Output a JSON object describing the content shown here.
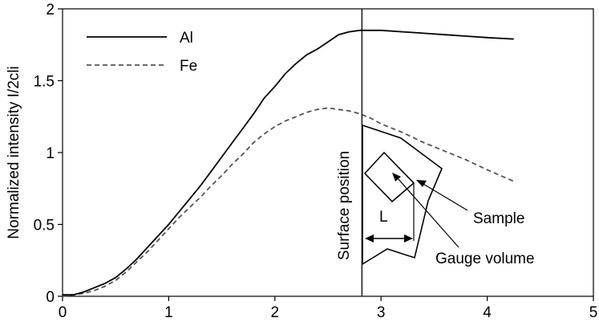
{
  "chart_data": {
    "type": "line",
    "ylabel": "Normalized intensity I/2cli",
    "xlim": [
      0,
      5
    ],
    "ylim": [
      0,
      2
    ],
    "xticks": [
      0,
      1,
      2,
      3,
      4,
      5
    ],
    "yticks": [
      0,
      0.5,
      1,
      1.5,
      2
    ],
    "ytick_labels": [
      "0",
      "0.5",
      "1",
      "1.5",
      "2"
    ],
    "legend_position": "top-left",
    "series": [
      {
        "name": "Al",
        "style": "solid",
        "color": "#000000",
        "x": [
          0.0,
          0.1,
          0.2,
          0.3,
          0.4,
          0.5,
          0.6,
          0.7,
          0.8,
          0.9,
          1.0,
          1.1,
          1.2,
          1.3,
          1.4,
          1.5,
          1.6,
          1.7,
          1.8,
          1.9,
          2.0,
          2.1,
          2.2,
          2.3,
          2.4,
          2.5,
          2.6,
          2.7,
          2.8,
          2.9,
          3.0,
          3.2,
          3.4,
          3.6,
          3.8,
          4.0,
          4.25
        ],
        "y": [
          0.01,
          0.01,
          0.03,
          0.06,
          0.09,
          0.13,
          0.19,
          0.26,
          0.34,
          0.42,
          0.5,
          0.59,
          0.68,
          0.77,
          0.87,
          0.97,
          1.07,
          1.17,
          1.27,
          1.38,
          1.46,
          1.55,
          1.62,
          1.68,
          1.72,
          1.77,
          1.82,
          1.84,
          1.85,
          1.85,
          1.85,
          1.84,
          1.83,
          1.82,
          1.81,
          1.8,
          1.79
        ]
      },
      {
        "name": "Fe",
        "style": "dashed",
        "color": "#555555",
        "x": [
          0.0,
          0.1,
          0.2,
          0.3,
          0.4,
          0.5,
          0.6,
          0.7,
          0.8,
          0.9,
          1.0,
          1.1,
          1.2,
          1.3,
          1.4,
          1.5,
          1.6,
          1.7,
          1.8,
          1.9,
          2.0,
          2.1,
          2.2,
          2.3,
          2.4,
          2.5,
          2.6,
          2.7,
          2.8,
          2.9,
          3.0,
          3.2,
          3.4,
          3.6,
          3.8,
          4.0,
          4.25
        ],
        "y": [
          0.0,
          0.01,
          0.02,
          0.04,
          0.07,
          0.11,
          0.17,
          0.24,
          0.31,
          0.39,
          0.47,
          0.55,
          0.62,
          0.69,
          0.77,
          0.84,
          0.92,
          0.99,
          1.07,
          1.13,
          1.18,
          1.22,
          1.25,
          1.28,
          1.3,
          1.31,
          1.3,
          1.29,
          1.27,
          1.24,
          1.2,
          1.14,
          1.07,
          1.01,
          0.95,
          0.88,
          0.8
        ]
      }
    ],
    "surface_x": 2.82,
    "annotations": {
      "surface_label": "Surface position",
      "sample_label": "Sample",
      "gauge_label": "Gauge volume",
      "length_label": "L"
    }
  }
}
